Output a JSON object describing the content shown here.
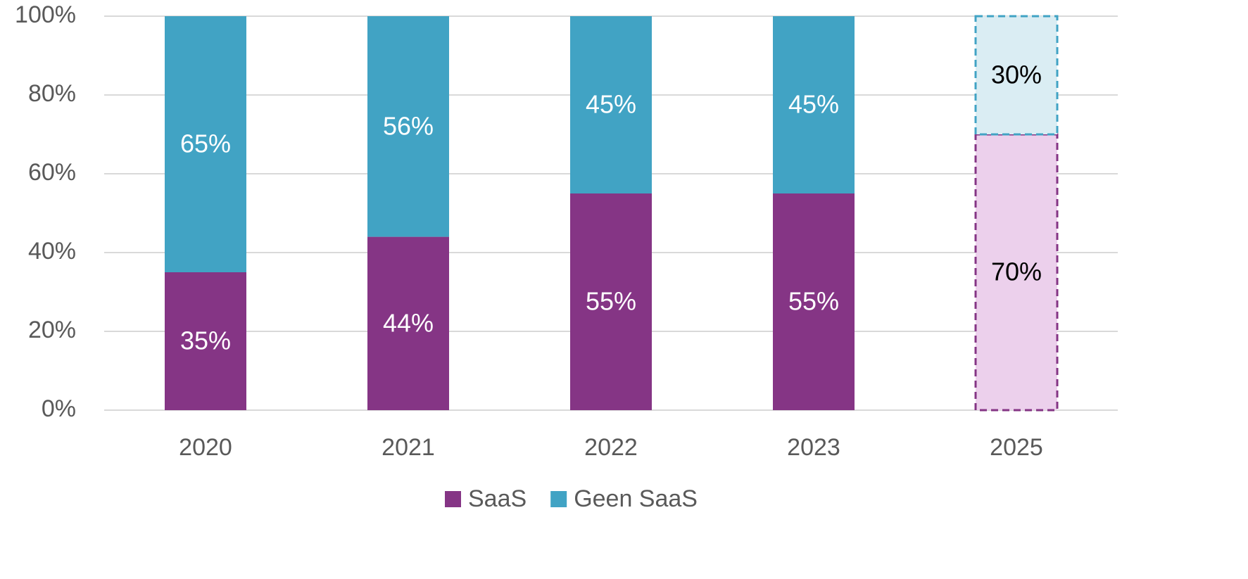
{
  "chart_data": {
    "type": "stacked_bar",
    "categories": [
      "2020",
      "2021",
      "2022",
      "2023",
      "2025"
    ],
    "series": [
      {
        "name": "SaaS",
        "color": "#853585",
        "values": [
          35,
          44,
          55,
          55,
          70
        ],
        "value_labels": [
          "35%",
          "44%",
          "55%",
          "55%",
          "70%"
        ],
        "colors": [
          "#853585",
          "#853585",
          "#853585",
          "#853585",
          "#ecd0ec"
        ],
        "edge_colors": [
          null,
          null,
          null,
          null,
          "#853585"
        ]
      },
      {
        "name": "Geen SaaS",
        "color": "#41a3c4",
        "values": [
          65,
          56,
          45,
          45,
          30
        ],
        "value_labels": [
          "65%",
          "56%",
          "45%",
          "45%",
          "30%"
        ],
        "colors": [
          "#41a3c4",
          "#41a3c4",
          "#41a3c4",
          "#41a3c4",
          "#daedf3"
        ],
        "edge_colors": [
          null,
          null,
          null,
          null,
          "#41a3c4"
        ]
      }
    ],
    "ylim": [
      0,
      100
    ],
    "yticks": [
      {
        "value": 0,
        "label": "0%"
      },
      {
        "value": 20,
        "label": "20%"
      },
      {
        "value": 40,
        "label": "40%"
      },
      {
        "value": 60,
        "label": "60%"
      },
      {
        "value": 80,
        "label": "80%"
      },
      {
        "value": 100,
        "label": "100%"
      }
    ],
    "grid": true,
    "legend": "bottom"
  }
}
